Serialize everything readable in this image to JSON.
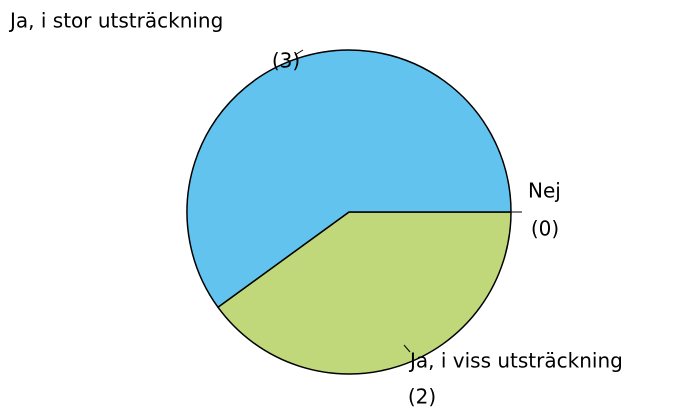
{
  "chart_data": {
    "type": "pie",
    "categories": [
      "Nej",
      "Ja, i viss utsträckning",
      "Ja, i stor utsträckning"
    ],
    "values": [
      0,
      2,
      3
    ],
    "value_labels": [
      "(0)",
      "(2)",
      "(3)"
    ],
    "colors": [
      "#e07b39",
      "#c0d77a",
      "#63c3ef"
    ]
  }
}
